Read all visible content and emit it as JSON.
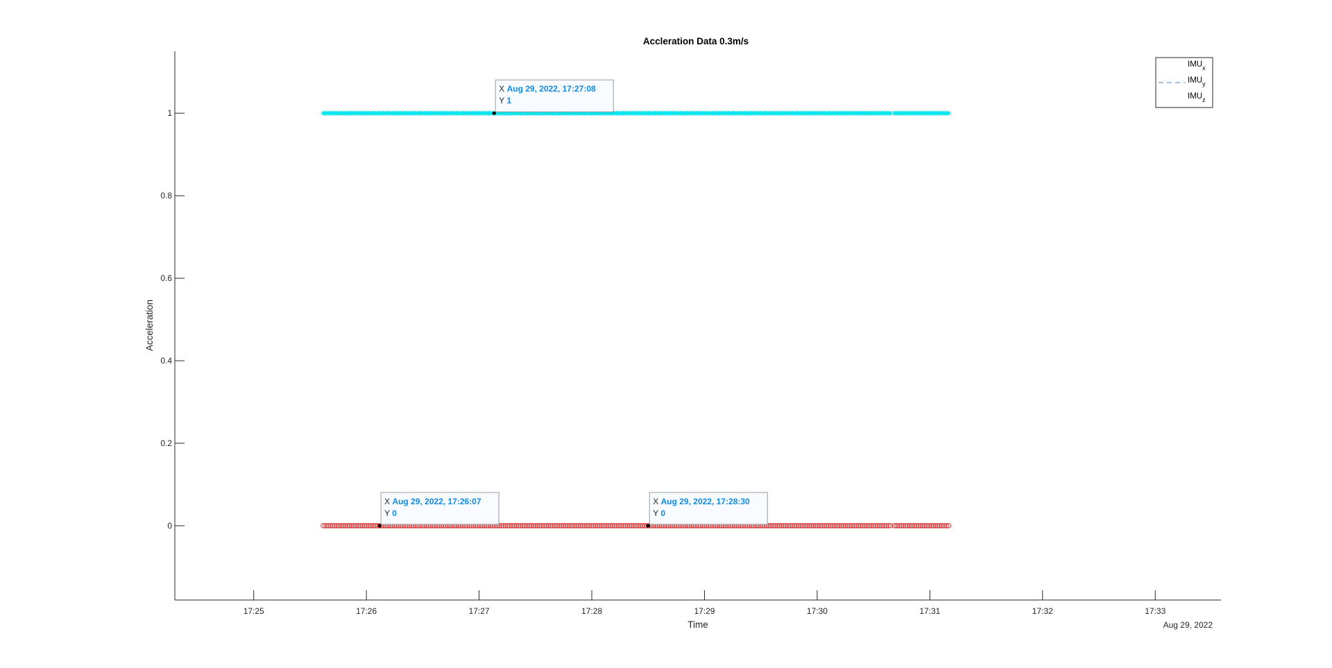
{
  "figure": {
    "background": "#ffffff"
  },
  "chart_data": {
    "type": "scatter",
    "title": "Accleration Data 0.3m/s",
    "xlabel": "Time",
    "ylabel": "Acceleration",
    "x_axis_date_label": "Aug 29, 2022",
    "xlim": [
      "2022-08-29T17:24:18",
      "2022-08-29T17:33:35"
    ],
    "ylim": [
      -0.18,
      1.15
    ],
    "x_ticks": [
      {
        "time": "2022-08-29T17:25:00",
        "label": "17:25"
      },
      {
        "time": "2022-08-29T17:26:00",
        "label": "17:26"
      },
      {
        "time": "2022-08-29T17:27:00",
        "label": "17:27"
      },
      {
        "time": "2022-08-29T17:28:00",
        "label": "17:28"
      },
      {
        "time": "2022-08-29T17:29:00",
        "label": "17:29"
      },
      {
        "time": "2022-08-29T17:30:00",
        "label": "17:30"
      },
      {
        "time": "2022-08-29T17:31:00",
        "label": "17:31"
      },
      {
        "time": "2022-08-29T17:32:00",
        "label": "17:32"
      },
      {
        "time": "2022-08-29T17:33:00",
        "label": "17:33"
      }
    ],
    "y_ticks": [
      {
        "value": 0,
        "label": "0"
      },
      {
        "value": 0.2,
        "label": "0.2"
      },
      {
        "value": 0.4,
        "label": "0.4"
      },
      {
        "value": 0.6,
        "label": "0.6"
      },
      {
        "value": 0.8,
        "label": "0.8"
      },
      {
        "value": 1,
        "label": "1"
      }
    ],
    "grid": false,
    "legend_position": "top-right",
    "series": [
      {
        "name": "IMU_x",
        "legend_base": "IMU",
        "legend_sub": "x",
        "marker": "circle",
        "legend_style": "none",
        "color": "#d62728",
        "constant_value": 0,
        "segments": [
          {
            "start": "2022-08-29T17:25:37",
            "end": "2022-08-29T17:30:39"
          },
          {
            "start": "2022-08-29T17:30:41",
            "end": "2022-08-29T17:31:10"
          }
        ]
      },
      {
        "name": "IMU_y",
        "legend_base": "IMU",
        "legend_sub": "y",
        "marker": "none",
        "legend_style": "dashed",
        "color": "#4a7ebb",
        "constant_value": 0,
        "segments": [
          {
            "start": "2022-08-29T17:25:37",
            "end": "2022-08-29T17:30:39"
          },
          {
            "start": "2022-08-29T17:30:41",
            "end": "2022-08-29T17:31:10"
          }
        ]
      },
      {
        "name": "IMU_z",
        "legend_base": "IMU",
        "legend_sub": "z",
        "marker": "asterisk",
        "legend_style": "none",
        "color": "#00e5ee",
        "constant_value": 1,
        "segments": [
          {
            "start": "2022-08-29T17:25:37",
            "end": "2022-08-29T17:30:39"
          },
          {
            "start": "2022-08-29T17:30:41",
            "end": "2022-08-29T17:31:10"
          }
        ]
      }
    ],
    "datatips": [
      {
        "time": "2022-08-29T17:27:08",
        "value": 1,
        "x_label": "X",
        "y_label": "Y",
        "x_text": "Aug 29, 2022, 17:27:08",
        "y_text": "1"
      },
      {
        "time": "2022-08-29T17:26:07",
        "value": 0,
        "x_label": "X",
        "y_label": "Y",
        "x_text": "Aug 29, 2022, 17:26:07",
        "y_text": "0"
      },
      {
        "time": "2022-08-29T17:28:30",
        "value": 0,
        "x_label": "X",
        "y_label": "Y",
        "x_text": "Aug 29, 2022, 17:28:30",
        "y_text": "0"
      }
    ],
    "datatip_value_color": "#0e8be0"
  }
}
